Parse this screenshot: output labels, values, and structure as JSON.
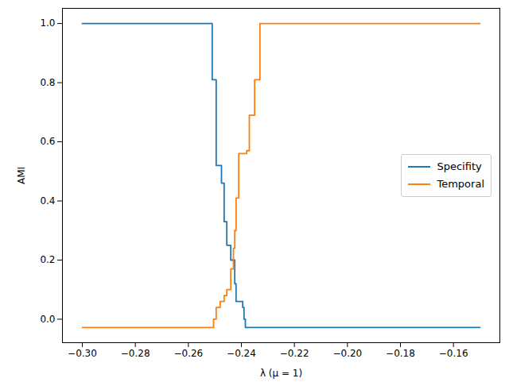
{
  "chart_data": {
    "type": "line",
    "line_style": "step",
    "x_label": "λ (μ = 1)",
    "y_label": "AMI",
    "legend": "right",
    "grid": false,
    "xlim": [
      -0.3075,
      -0.1425
    ],
    "ylim": [
      -0.0794,
      1.0514
    ],
    "xticks": [
      {
        "value": -0.3,
        "label": "−0.30"
      },
      {
        "value": -0.28,
        "label": "−0.28"
      },
      {
        "value": -0.26,
        "label": "−0.26"
      },
      {
        "value": -0.24,
        "label": "−0.24"
      },
      {
        "value": -0.22,
        "label": "−0.22"
      },
      {
        "value": -0.2,
        "label": "−0.20"
      },
      {
        "value": -0.18,
        "label": "−0.18"
      },
      {
        "value": -0.16,
        "label": "−0.16"
      }
    ],
    "yticks": [
      {
        "value": 0,
        "label": "0.0"
      },
      {
        "value": 0.2,
        "label": "0.2"
      },
      {
        "value": 0.4,
        "label": "0.4"
      },
      {
        "value": 0.6,
        "label": "0.6"
      },
      {
        "value": 0.8,
        "label": "0.8"
      },
      {
        "value": 1,
        "label": "1.0"
      }
    ],
    "x": [
      -0.3,
      -0.251,
      -0.2505,
      -0.2495,
      -0.248,
      -0.2475,
      -0.2465,
      -0.2455,
      -0.244,
      -0.243,
      -0.2425,
      -0.242,
      -0.241,
      -0.2395,
      -0.239,
      -0.2385,
      -0.238,
      -0.237,
      -0.235,
      -0.233,
      -0.15
    ],
    "series": [
      {
        "name": "Specifity",
        "color": "#1f77b4",
        "values": [
          1.0,
          0.81,
          0.81,
          0.52,
          0.52,
          0.46,
          0.33,
          0.25,
          0.2,
          0.2,
          0.12,
          0.06,
          0.06,
          0.04,
          0.0,
          -0.028,
          -0.028,
          -0.028,
          -0.028,
          -0.028,
          -0.028
        ]
      },
      {
        "name": "Temporal",
        "color": "#ff7f0e",
        "values": [
          -0.028,
          -0.028,
          0.0,
          0.04,
          0.06,
          0.06,
          0.08,
          0.1,
          0.17,
          0.24,
          0.3,
          0.41,
          0.56,
          0.56,
          0.56,
          0.56,
          0.57,
          0.69,
          0.81,
          1.0,
          1.0
        ]
      }
    ]
  }
}
